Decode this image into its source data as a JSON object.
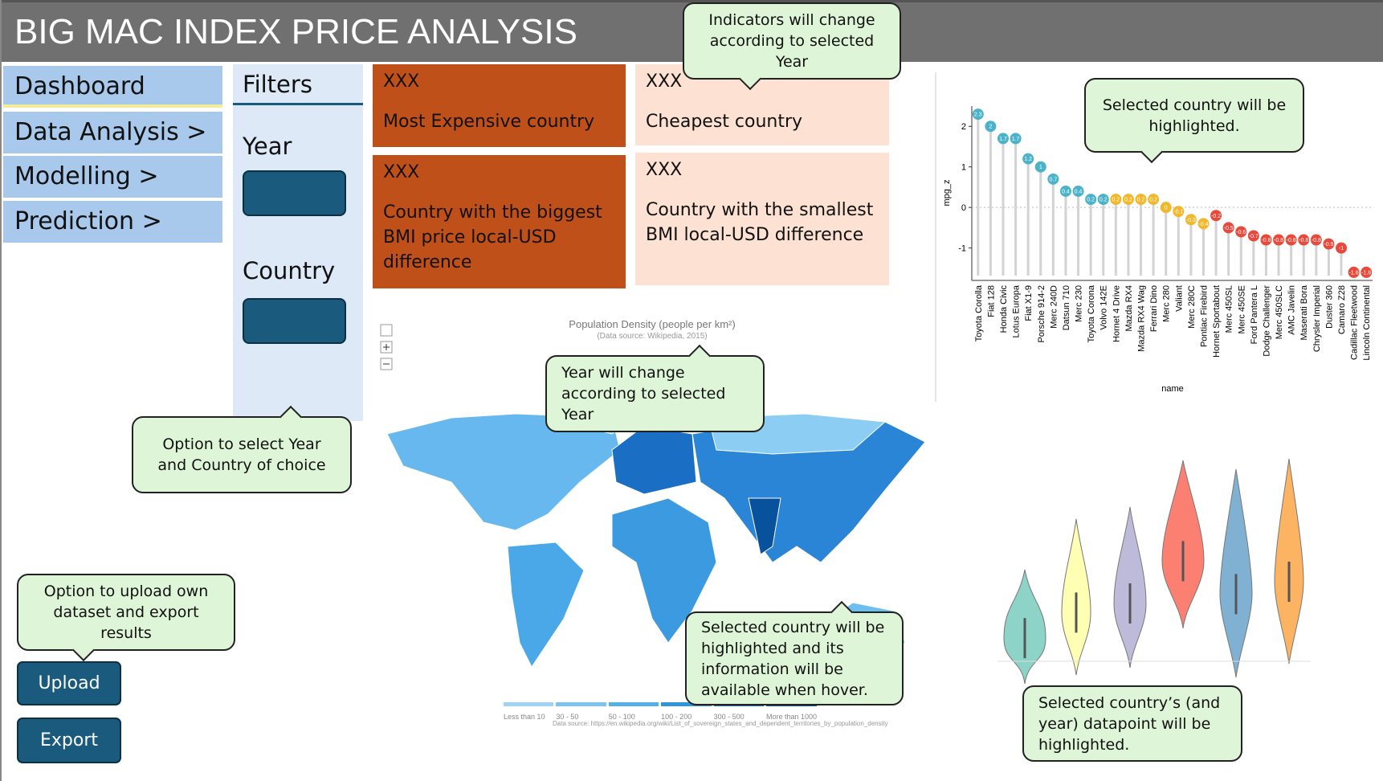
{
  "header": {
    "title": "BIG MAC INDEX PRICE ANALYSIS"
  },
  "nav": [
    "Dashboard",
    "Data Analysis >",
    "Modelling >",
    "Prediction >"
  ],
  "filters": {
    "title": "Filters",
    "year_label": "Year",
    "country_label": "Country"
  },
  "kpis": [
    {
      "value": "XXX",
      "label": "Most Expensive country"
    },
    {
      "value": "XXX",
      "label": "Cheapest country"
    },
    {
      "value": "XXX",
      "label": "Country with the biggest BMI price local-USD difference"
    },
    {
      "value": "XXX",
      "label": "Country with the smallest BMI local-USD difference"
    }
  ],
  "map": {
    "title": "Population Density (people per km²)",
    "subtitle": "(Data source: Wikipedia, 2015)",
    "legend": [
      "Less than 10",
      "30 - 50",
      "50 - 100",
      "100 - 200",
      "300 - 500",
      "More than 1000"
    ],
    "source": "Data source: https://en.wikipedia.org/wiki/List_of_sovereign_states_and_dependent_territories_by_population_density"
  },
  "callouts": [
    "Indicators will change according to selected Year",
    "Selected country will be highlighted.",
    "Year will change according to selected Year",
    "Option to select Year and Country of choice",
    "Selected country will be highlighted and its information will be available when hover.",
    "Option to upload own dataset and export results",
    "Selected country’s (and year) datapoint will be highlighted."
  ],
  "buttons": [
    "Upload",
    "Export"
  ],
  "chart_data": {
    "type": "lollipop",
    "y_label": "mpg_z",
    "x_label": "name",
    "categories": [
      "Toyota Corolla",
      "Fiat 128",
      "Honda Civic",
      "Lotus Europa",
      "Fiat X1-9",
      "Porsche 914-2",
      "Merc 240D",
      "Datsun 710",
      "Merc 230",
      "Toyota Corona",
      "Volvo 142E",
      "Hornet 4 Drive",
      "Mazda RX4",
      "Mazda RX4 Wag",
      "Ferrari Dino",
      "Merc 280",
      "Valiant",
      "Merc 280C",
      "Pontiac Firebird",
      "Hornet Sportabout",
      "Merc 450SL",
      "Merc 450SE",
      "Ford Pantera L",
      "Dodge Challenger",
      "Merc 450SLC",
      "AMC Javelin",
      "Maserati Bora",
      "Chrysler Imperial",
      "Duster 360",
      "Camaro Z28",
      "Cadillac Fleetwood",
      "Lincoln Continental"
    ],
    "values": [
      2.3,
      2,
      1.7,
      1.7,
      1.2,
      1,
      0.7,
      0.4,
      0.4,
      0.2,
      0.2,
      0.2,
      0.2,
      0.2,
      0.2,
      0,
      -0.1,
      -0.3,
      -0.4,
      -0.2,
      -0.5,
      -0.6,
      -0.7,
      -0.8,
      -0.8,
      -0.8,
      -0.8,
      -0.8,
      -0.9,
      -1,
      -1.6,
      -1.6
    ],
    "colors": [
      "#4bb3c9",
      "#4bb3c9",
      "#4bb3c9",
      "#4bb3c9",
      "#4bb3c9",
      "#4bb3c9",
      "#4bb3c9",
      "#4bb3c9",
      "#4bb3c9",
      "#4bb3c9",
      "#4bb3c9",
      "#f0b82a",
      "#f0b82a",
      "#f0b82a",
      "#f0b82a",
      "#f0b82a",
      "#f0b82a",
      "#f0b82a",
      "#f0b82a",
      "#e8493a",
      "#e8493a",
      "#e8493a",
      "#e8493a",
      "#e8493a",
      "#e8493a",
      "#e8493a",
      "#e8493a",
      "#e8493a",
      "#e8493a",
      "#e8493a",
      "#e8493a",
      "#e8493a"
    ],
    "ylim": [
      -1.8,
      2.5
    ],
    "yticks": [
      -1,
      0,
      1,
      2
    ]
  }
}
